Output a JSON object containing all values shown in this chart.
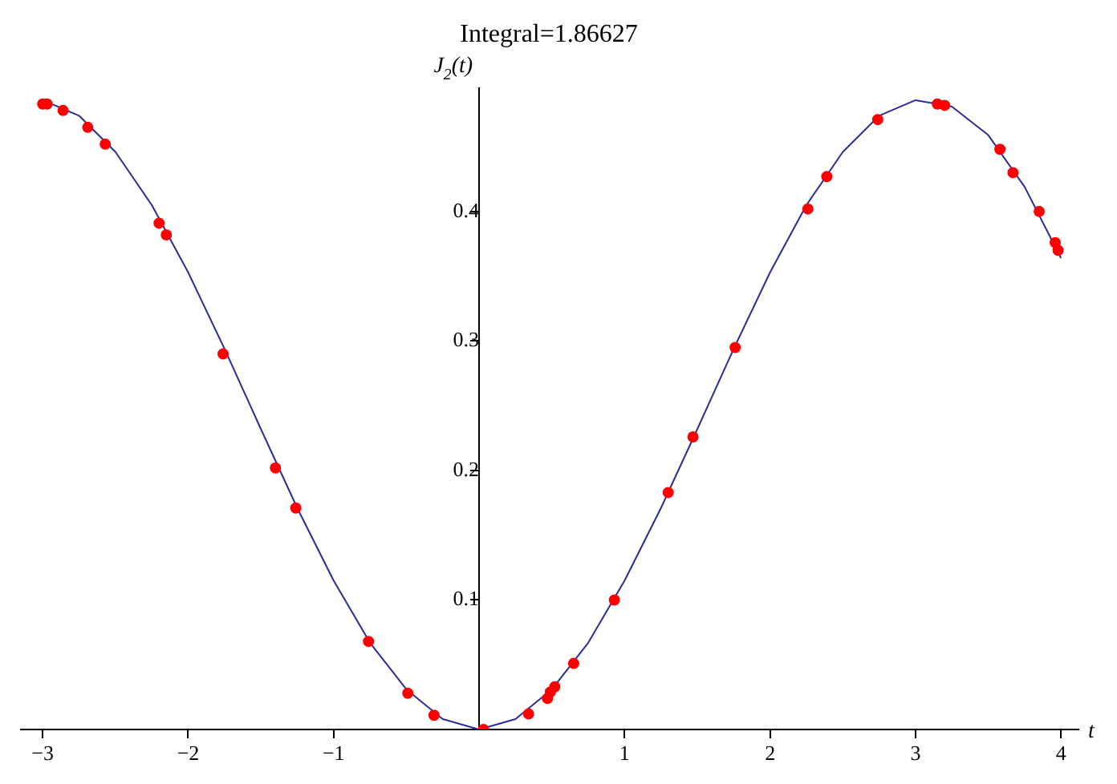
{
  "chart_data": {
    "type": "line",
    "title": "Integral=1.86627",
    "xlabel": "t",
    "ylabel": "J$_{2}$(t)",
    "xlim": [
      -3.15,
      4.12
    ],
    "ylim": [
      0,
      0.495
    ],
    "xticks": [
      -3,
      -2,
      -1,
      1,
      2,
      3,
      4
    ],
    "yticks": [
      0.1,
      0.2,
      0.3,
      0.4
    ],
    "grid": false,
    "legend": false,
    "series": [
      {
        "color": "#2b2b9c",
        "marker": "none",
        "x": [
          -3,
          -2.75,
          -2.5,
          -2.25,
          -2,
          -1.75,
          -1.5,
          -1.25,
          -1,
          -0.75,
          -0.5,
          -0.25,
          0,
          0.25,
          0.5,
          0.75,
          1,
          1.25,
          1.5,
          1.75,
          2,
          2.25,
          2.5,
          2.75,
          3,
          3.25,
          3.5,
          3.75,
          4
        ],
        "values": [
          0.486,
          0.474,
          0.446,
          0.405,
          0.353,
          0.294,
          0.232,
          0.171,
          0.115,
          0.067,
          0.031,
          0.008,
          0,
          0.008,
          0.031,
          0.067,
          0.115,
          0.171,
          0.232,
          0.294,
          0.353,
          0.405,
          0.446,
          0.474,
          0.486,
          0.481,
          0.459,
          0.419,
          0.364
        ]
      },
      {
        "type": "scatter",
        "color": "#ff0000",
        "marker": "circle",
        "x": [
          -3,
          -2.97,
          -2.86,
          -2.69,
          -2.57,
          -2.2,
          -2.15,
          -1.76,
          -1.4,
          -1.26,
          -0.76,
          -0.49,
          -0.31,
          0.03,
          0.34,
          0.47,
          0.49,
          0.52,
          0.65,
          0.93,
          1.3,
          1.47,
          1.76,
          2.26,
          2.39,
          2.74,
          3.15,
          3.2,
          3.58,
          3.67,
          3.85,
          3.96,
          3.98
        ],
        "values": [
          0.483,
          0.483,
          0.478,
          0.465,
          0.452,
          0.391,
          0.382,
          0.29,
          0.202,
          0.171,
          0.068,
          0.028,
          0.011,
          0,
          0.012,
          0.024,
          0.029,
          0.033,
          0.051,
          0.1,
          0.183,
          0.226,
          0.295,
          0.402,
          0.427,
          0.471,
          0.483,
          0.482,
          0.448,
          0.43,
          0.4,
          0.376,
          0.37
        ]
      }
    ]
  }
}
